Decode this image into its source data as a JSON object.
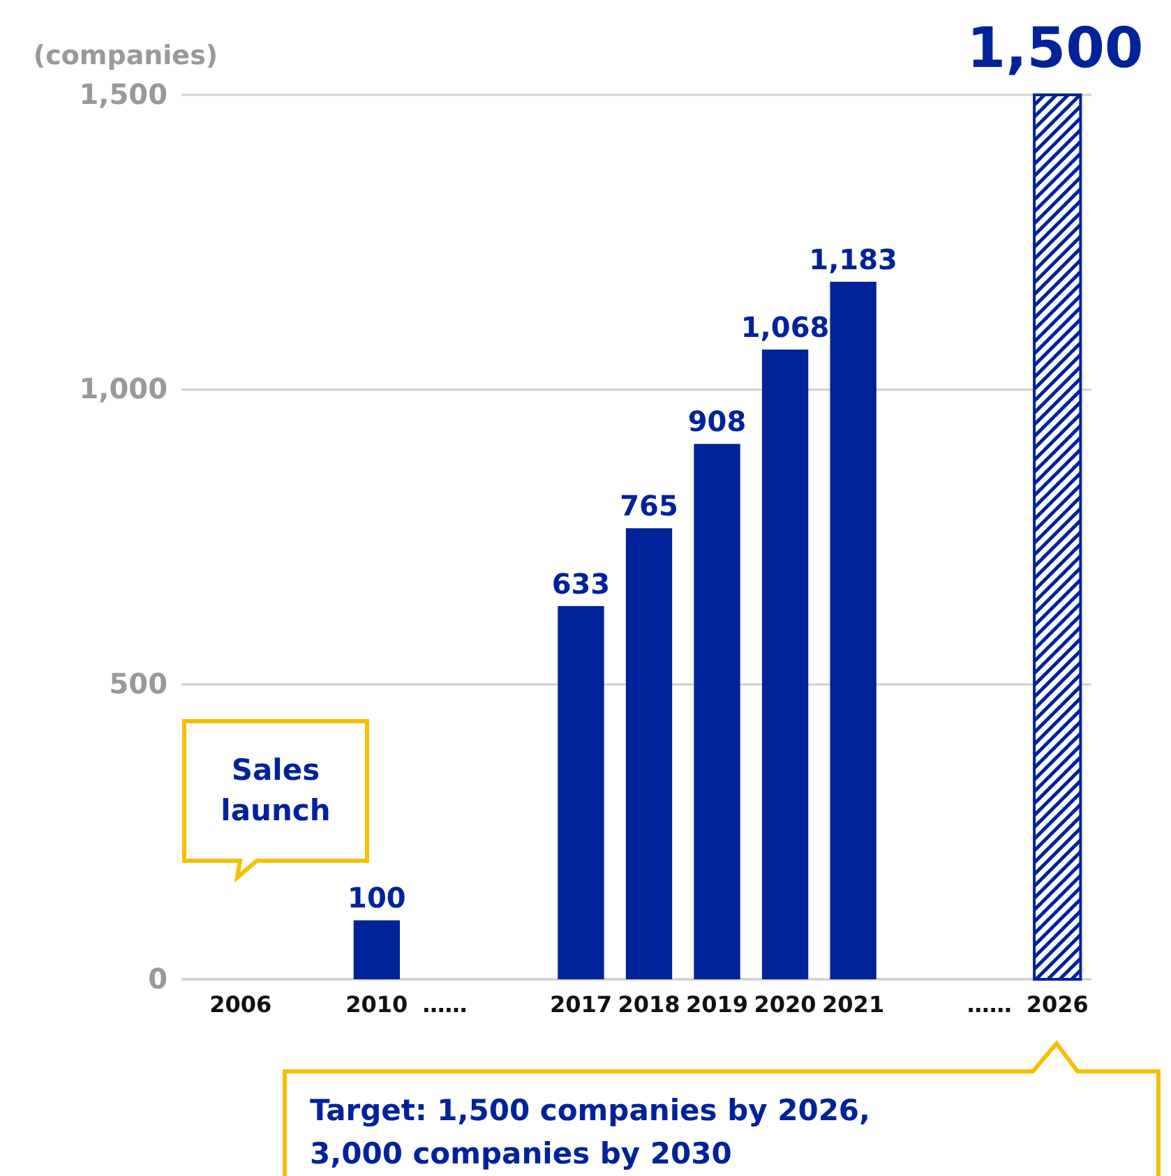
{
  "chart_data": {
    "type": "bar",
    "ylabel": "(companies)",
    "categories": [
      "2006",
      null,
      "2010",
      "……",
      null,
      "2017",
      "2018",
      "2019",
      "2020",
      "2021",
      null,
      "……",
      "2026"
    ],
    "series": [
      {
        "color": "#00229a",
        "values": [
          null,
          null,
          100,
          null,
          null,
          633,
          765,
          908,
          1068,
          1183,
          null,
          null,
          null
        ],
        "value_labels": [
          null,
          null,
          "100",
          null,
          null,
          "633",
          "765",
          "908",
          "1,068",
          "1,183",
          null,
          null,
          null
        ]
      },
      {
        "color": "#00229a",
        "values": [
          null,
          null,
          null,
          null,
          null,
          null,
          null,
          null,
          null,
          null,
          null,
          null,
          1500
        ],
        "value_labels": [
          null,
          null,
          null,
          null,
          null,
          null,
          null,
          null,
          null,
          null,
          null,
          null,
          "1,500"
        ]
      }
    ],
    "ylim": [
      0,
      1500
    ],
    "yticks": [
      0,
      500,
      {
        "value": 1000,
        "label": "1,000"
      },
      {
        "value": 1500,
        "label": "1,500"
      }
    ],
    "grid": "y",
    "annotations": [
      "Sales launch",
      "Target: 1,500 companies by 2026, 3,000 companies by 2030"
    ]
  }
}
